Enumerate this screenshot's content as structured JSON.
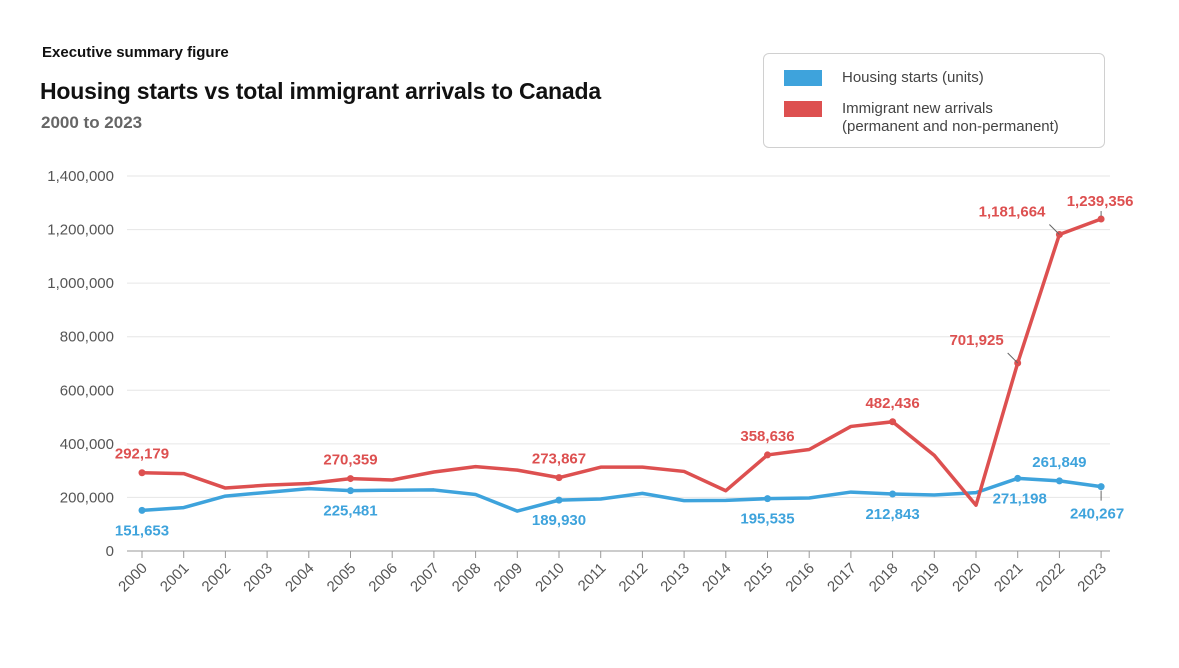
{
  "header": {
    "kicker": "Executive summary figure",
    "title": "Housing starts vs total immigrant arrivals to Canada",
    "subtitle": "2000 to 2023"
  },
  "legend": [
    {
      "label": "Housing starts (units)",
      "color": "#3ea3dc"
    },
    {
      "label": "Immigrant new arrivals\n(permanent and non-permanent)",
      "color": "#dd5050"
    }
  ],
  "chart_data": {
    "type": "line",
    "title": "Housing starts vs total immigrant arrivals to Canada",
    "subtitle": "2000 to 2023",
    "xlabel": "",
    "ylabel": "",
    "ylim": [
      0,
      1400000
    ],
    "yticks": [
      0,
      200000,
      400000,
      600000,
      800000,
      1000000,
      1200000,
      1400000
    ],
    "ytick_labels": [
      "0",
      "200,000",
      "400,000",
      "600,000",
      "800,000",
      "1,000,000",
      "1,200,000",
      "1,400,000"
    ],
    "grid": true,
    "legend_position": "top-right",
    "categories": [
      "2000",
      "2001",
      "2002",
      "2003",
      "2004",
      "2005",
      "2006",
      "2007",
      "2008",
      "2009",
      "2010",
      "2011",
      "2012",
      "2013",
      "2014",
      "2015",
      "2016",
      "2017",
      "2018",
      "2019",
      "2020",
      "2021",
      "2022",
      "2023"
    ],
    "series": [
      {
        "name": "Housing starts (units)",
        "color": "#3ea3dc",
        "values": [
          151653,
          162000,
          205000,
          219000,
          233000,
          225481,
          227000,
          228000,
          211000,
          149000,
          189930,
          194000,
          215000,
          188000,
          189000,
          195535,
          198000,
          220000,
          212843,
          209000,
          218000,
          271198,
          261849,
          240267
        ],
        "labels": [
          {
            "index": 0,
            "text": "151,653",
            "pos": "below"
          },
          {
            "index": 5,
            "text": "225,481",
            "pos": "below"
          },
          {
            "index": 10,
            "text": "189,930",
            "pos": "below"
          },
          {
            "index": 15,
            "text": "195,535",
            "pos": "below"
          },
          {
            "index": 18,
            "text": "212,843",
            "pos": "below"
          },
          {
            "index": 21,
            "text": "271,198",
            "pos": "below"
          },
          {
            "index": 22,
            "text": "261,849",
            "pos": "above"
          },
          {
            "index": 23,
            "text": "240,267",
            "pos": "below"
          }
        ]
      },
      {
        "name": "Immigrant new arrivals (permanent and non-permanent)",
        "color": "#dd5050",
        "values": [
          292179,
          289000,
          235000,
          246000,
          252000,
          270359,
          265000,
          295000,
          315000,
          302000,
          273867,
          313000,
          313000,
          297000,
          225000,
          358636,
          379000,
          465000,
          482436,
          357000,
          171000,
          701925,
          1181664,
          1239356
        ],
        "labels": [
          {
            "index": 0,
            "text": "292,179",
            "pos": "above"
          },
          {
            "index": 5,
            "text": "270,359",
            "pos": "above"
          },
          {
            "index": 10,
            "text": "273,867",
            "pos": "above"
          },
          {
            "index": 15,
            "text": "358,636",
            "pos": "above"
          },
          {
            "index": 18,
            "text": "482,436",
            "pos": "above"
          },
          {
            "index": 21,
            "text": "701,925",
            "pos": "left"
          },
          {
            "index": 22,
            "text": "1,181,664",
            "pos": "left"
          },
          {
            "index": 23,
            "text": "1,239,356",
            "pos": "above"
          }
        ]
      }
    ]
  }
}
